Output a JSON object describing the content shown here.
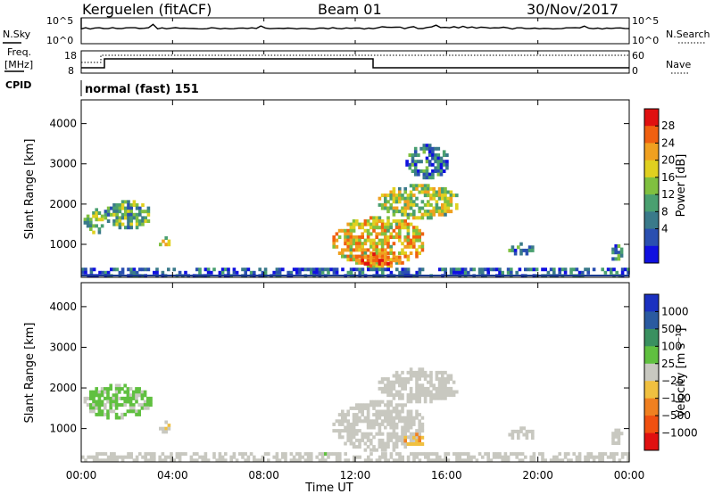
{
  "header": {
    "station": "Kerguelen (fitACF)",
    "beam": "Beam 01",
    "date": "30/Nov/2017"
  },
  "status_panel": {
    "nsky_label": "N.Sky",
    "nsearch_label": "N.Search",
    "noise_ticks": [
      "10^5",
      "10^0"
    ],
    "freq_label_1": "Freq.",
    "freq_label_2": "[MHz]",
    "freq_ticks": [
      "18",
      "8"
    ],
    "nave_ticks": [
      "60",
      "0"
    ],
    "nave_label": "Nave",
    "cpid_label": "CPID",
    "cpid_value": "normal (fast) 151"
  },
  "x_axis": {
    "title": "Time UT",
    "ticks": [
      "00:00",
      "04:00",
      "08:00",
      "12:00",
      "16:00",
      "20:00",
      "00:00"
    ],
    "range_hours": [
      0,
      24
    ]
  },
  "chart_data": [
    {
      "type": "heatmap",
      "panel": "power",
      "ylabel": "Slant Range [km]",
      "ylim": [
        180,
        4590
      ],
      "yticks": [
        "1000",
        "2000",
        "3000",
        "4000"
      ],
      "colorbar": {
        "label": "Power [dB]",
        "ticks": [
          "28",
          "24",
          "20",
          "16",
          "12",
          "8",
          "4"
        ],
        "range": [
          0,
          30
        ],
        "colors": [
          "#1010e0",
          "#2a4fb0",
          "#3a7a8a",
          "#4aa070",
          "#80c040",
          "#e0d020",
          "#f0a020",
          "#f06010",
          "#e01010"
        ]
      },
      "features": [
        {
          "t": [
            0.1,
            0.9
          ],
          "r": [
            1300,
            1900
          ],
          "level": 0.45
        },
        {
          "t": [
            1.0,
            3.0
          ],
          "r": [
            1450,
            2100
          ],
          "level": 0.4
        },
        {
          "t": [
            3.4,
            3.8
          ],
          "r": [
            950,
            1200
          ],
          "level": 0.55
        },
        {
          "t": [
            11.0,
            15.0
          ],
          "r": [
            500,
            1700
          ],
          "level": 0.65
        },
        {
          "t": [
            12.0,
            14.0
          ],
          "r": [
            500,
            800
          ],
          "level": 0.9
        },
        {
          "t": [
            13.0,
            16.5
          ],
          "r": [
            1700,
            2500
          ],
          "level": 0.55
        },
        {
          "t": [
            14.2,
            16.0
          ],
          "r": [
            2700,
            3500
          ],
          "level": 0.25
        },
        {
          "t": [
            18.7,
            19.8
          ],
          "r": [
            750,
            1050
          ],
          "level": 0.3
        },
        {
          "t": [
            23.1,
            23.7
          ],
          "r": [
            650,
            1000
          ],
          "level": 0.3
        },
        {
          "t": [
            0.0,
            24.0
          ],
          "r": [
            200,
            420
          ],
          "level": 0.2
        }
      ]
    },
    {
      "type": "heatmap",
      "panel": "velocity",
      "ylabel": "Slant Range [km]",
      "ylim": [
        180,
        4590
      ],
      "yticks": [
        "1000",
        "2000",
        "3000",
        "4000"
      ],
      "colorbar": {
        "label": "Velocity [m s⁻¹]",
        "ticks": [
          "1000",
          "500",
          "100",
          "25",
          "−25",
          "−100",
          "−500",
          "−1000"
        ],
        "range": [
          -1000,
          1000
        ],
        "colors": [
          "#e01010",
          "#f05010",
          "#f08020",
          "#f0c040",
          "#c8c8c0",
          "#60c040",
          "#3a9060",
          "#2a5aa0",
          "#1a30c0"
        ]
      },
      "features": [
        {
          "t": [
            0.1,
            3.0
          ],
          "r": [
            1300,
            2100
          ],
          "velocity": 150
        },
        {
          "t": [
            3.4,
            3.8
          ],
          "r": [
            950,
            1200
          ],
          "velocity": -80
        },
        {
          "t": [
            11.0,
            15.0
          ],
          "r": [
            500,
            1700
          ],
          "velocity": 0
        },
        {
          "t": [
            14.0,
            15.0
          ],
          "r": [
            600,
            900
          ],
          "velocity": -300
        },
        {
          "t": [
            13.0,
            16.5
          ],
          "r": [
            1700,
            2500
          ],
          "velocity": 0
        },
        {
          "t": [
            18.7,
            19.8
          ],
          "r": [
            750,
            1050
          ],
          "velocity": 0
        },
        {
          "t": [
            23.1,
            23.7
          ],
          "r": [
            650,
            1000
          ],
          "velocity": 0
        },
        {
          "t": [
            0.0,
            24.0
          ],
          "r": [
            200,
            420
          ],
          "velocity": 20
        }
      ]
    }
  ]
}
